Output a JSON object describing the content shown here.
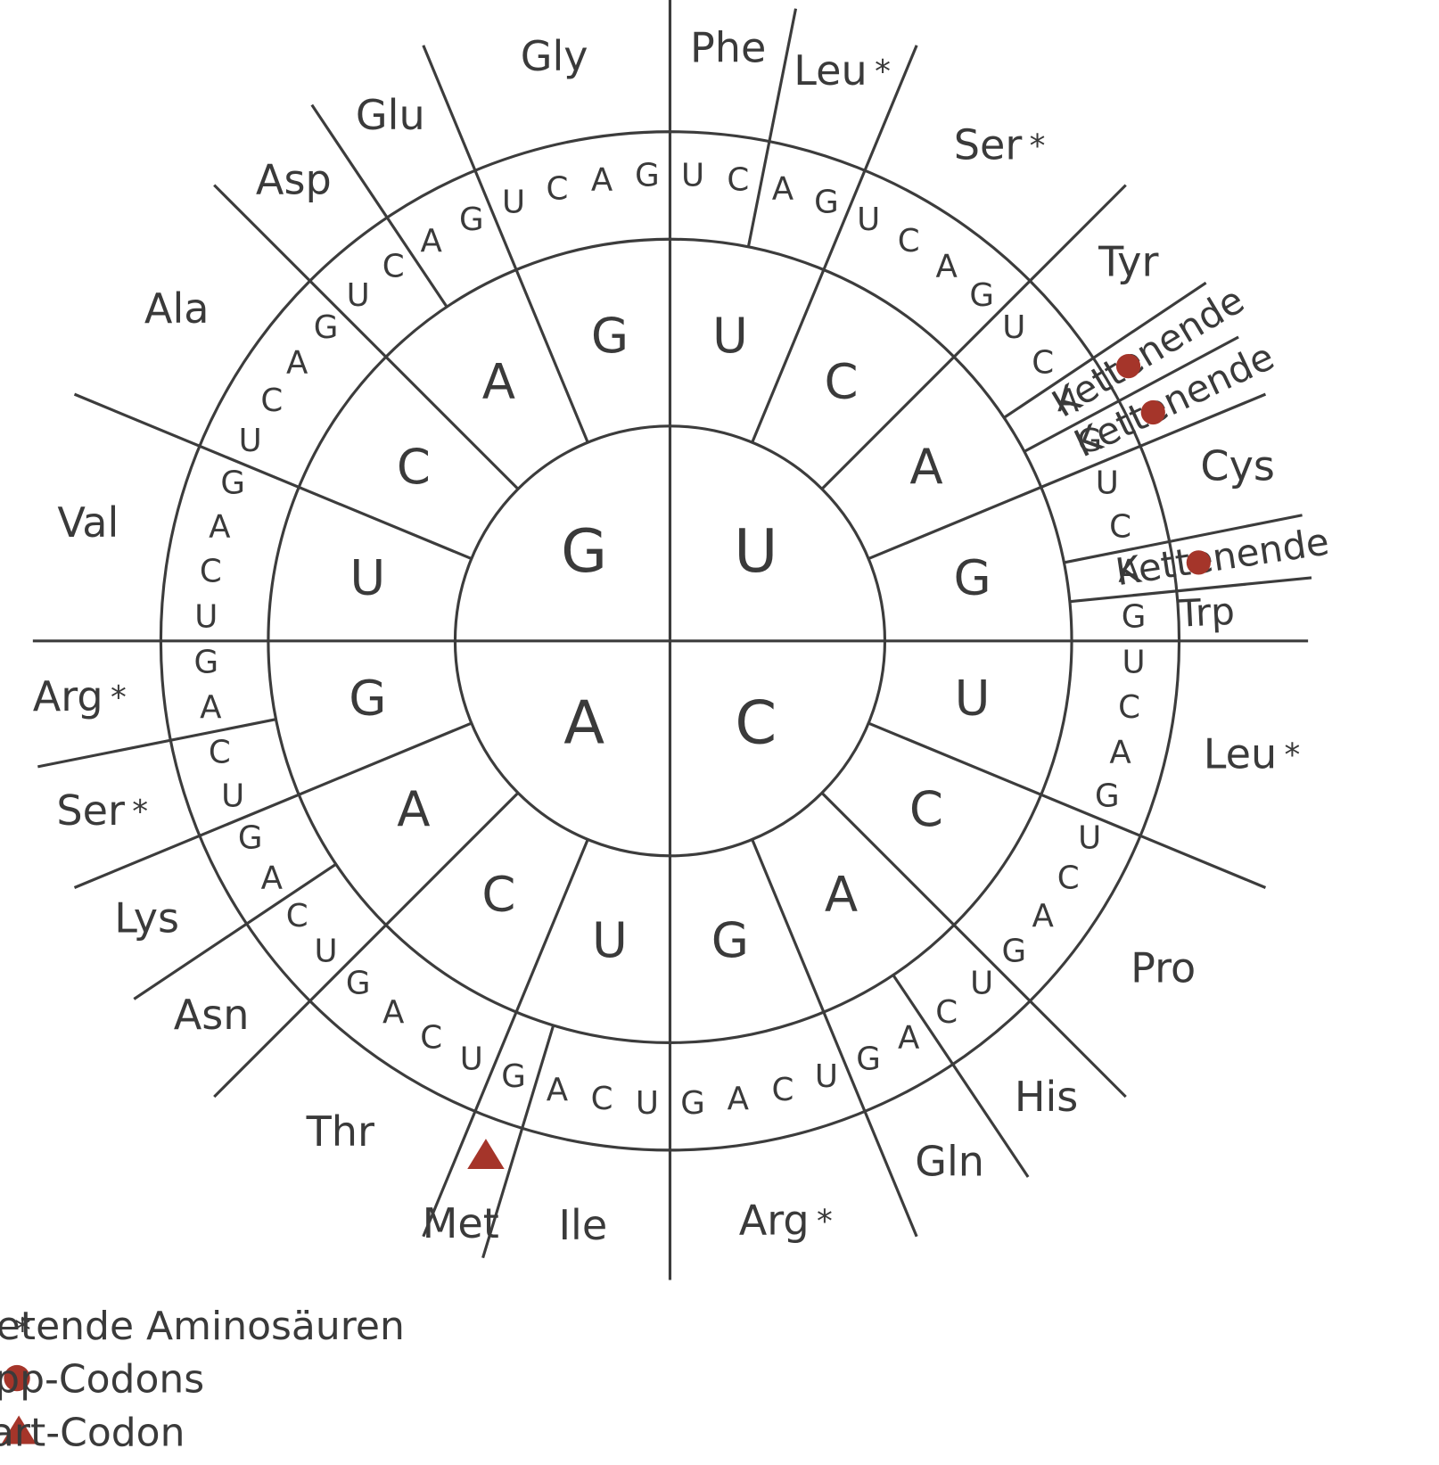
{
  "quadrants": [
    {
      "base": "U",
      "groups": [
        {
          "base": "U",
          "codons": [
            "U",
            "C",
            "A",
            "G"
          ],
          "amino": [
            {
              "name": "Phe"
            },
            null,
            {
              "name": "Leu",
              "symbol": "*"
            },
            null
          ]
        },
        {
          "base": "C",
          "codons": [
            "U",
            "C",
            "A",
            "G"
          ],
          "amino": [
            {
              "name": "Ser",
              "symbol": "*"
            },
            null,
            null,
            null
          ]
        },
        {
          "base": "A",
          "codons": [
            "U",
            "C",
            "A",
            "G"
          ],
          "amino": [
            {
              "name": "Tyr"
            },
            null,
            {
              "name": "Kettenende",
              "marker": "circle"
            },
            {
              "name": "Kettenende",
              "marker": "circle"
            }
          ]
        },
        {
          "base": "G",
          "codons": [
            "U",
            "C",
            "A",
            "G"
          ],
          "amino": [
            {
              "name": "Cys"
            },
            null,
            {
              "name": "Kettenende",
              "marker": "circle"
            },
            {
              "name": "Trp"
            }
          ]
        }
      ]
    },
    {
      "base": "C",
      "groups": [
        {
          "base": "U",
          "codons": [
            "U",
            "C",
            "A",
            "G"
          ],
          "amino": [
            {
              "name": "Leu",
              "symbol": "*"
            },
            null,
            null,
            null
          ]
        },
        {
          "base": "C",
          "codons": [
            "U",
            "C",
            "A",
            "G"
          ],
          "amino": [
            {
              "name": "Pro"
            },
            null,
            null,
            null
          ]
        },
        {
          "base": "A",
          "codons": [
            "U",
            "C",
            "A",
            "G"
          ],
          "amino": [
            {
              "name": "His"
            },
            null,
            {
              "name": "Gln"
            },
            null
          ]
        },
        {
          "base": "G",
          "codons": [
            "U",
            "C",
            "A",
            "G"
          ],
          "amino": [
            {
              "name": "Arg",
              "symbol": "*"
            },
            null,
            null,
            null
          ]
        }
      ]
    },
    {
      "base": "A",
      "groups": [
        {
          "base": "U",
          "codons": [
            "U",
            "C",
            "A",
            "G"
          ],
          "amino": [
            {
              "name": "Ile"
            },
            null,
            null,
            {
              "name": "Met",
              "marker": "triangle"
            }
          ]
        },
        {
          "base": "C",
          "codons": [
            "U",
            "C",
            "A",
            "G"
          ],
          "amino": [
            {
              "name": "Thr"
            },
            null,
            null,
            null
          ]
        },
        {
          "base": "A",
          "codons": [
            "U",
            "C",
            "A",
            "G"
          ],
          "amino": [
            {
              "name": "Asn"
            },
            null,
            {
              "name": "Lys"
            },
            null
          ]
        },
        {
          "base": "G",
          "codons": [
            "U",
            "C",
            "A",
            "G"
          ],
          "amino": [
            {
              "name": "Ser",
              "symbol": "*"
            },
            null,
            {
              "name": "Arg",
              "symbol": "*"
            },
            null
          ]
        }
      ]
    },
    {
      "base": "G",
      "groups": [
        {
          "base": "U",
          "codons": [
            "U",
            "C",
            "A",
            "G"
          ],
          "amino": [
            {
              "name": "Val"
            },
            null,
            null,
            null
          ]
        },
        {
          "base": "C",
          "codons": [
            "U",
            "C",
            "A",
            "G"
          ],
          "amino": [
            {
              "name": "Ala"
            },
            null,
            null,
            null
          ]
        },
        {
          "base": "A",
          "codons": [
            "U",
            "C",
            "A",
            "G"
          ],
          "amino": [
            {
              "name": "Asp"
            },
            null,
            {
              "name": "Glu"
            },
            null
          ]
        },
        {
          "base": "G",
          "codons": [
            "U",
            "C",
            "A",
            "G"
          ],
          "amino": [
            {
              "name": "Gly"
            },
            null,
            null,
            null
          ]
        }
      ]
    }
  ],
  "marker_color": "#a5352a",
  "legend": [
    {
      "symbol": "*",
      "text": "zweimal auftretende  Aminosäuren"
    },
    {
      "marker": "circle",
      "text": "Stopp-Codons"
    },
    {
      "marker": "triangle",
      "text": "Start-Codon"
    }
  ]
}
